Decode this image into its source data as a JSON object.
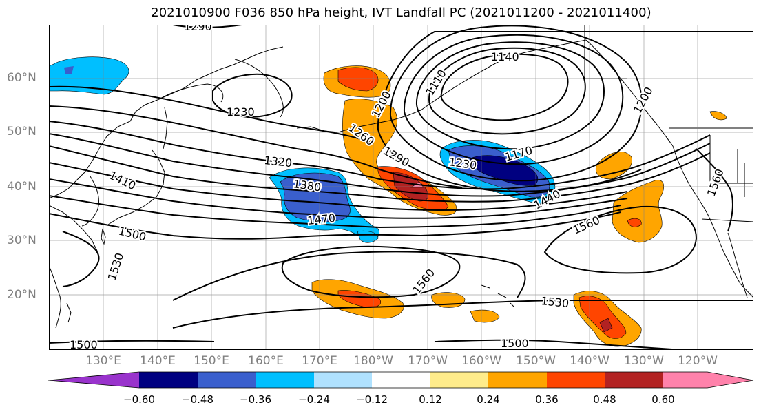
{
  "title": "2021010900 F036 850 hPa height, IVT Landfall PC (2021011200 - 2021011400)",
  "lat_labels": [
    "60°N",
    "50°N",
    "40°N",
    "30°N",
    "20°N"
  ],
  "lon_labels": [
    "130°E",
    "140°E",
    "150°E",
    "160°E",
    "170°E",
    "180°W",
    "170°W",
    "160°W",
    "150°W",
    "140°W",
    "130°W",
    "120°W"
  ],
  "contour_labels": [
    "1290",
    "1140",
    "1110",
    "1200",
    "1230",
    "1260",
    "1290",
    "1320",
    "1410",
    "1380",
    "1230",
    "1170",
    "1470",
    "1440",
    "1500",
    "1560",
    "1530",
    "1560",
    "1530",
    "1500",
    "1500",
    "1560",
    "1200"
  ],
  "colorbar": {
    "ticks": [
      "−0.60",
      "−0.48",
      "−0.36",
      "−0.24",
      "−0.12",
      "0.12",
      "0.24",
      "0.36",
      "0.48",
      "0.60"
    ],
    "colors": [
      "#9933cc",
      "#000080",
      "#3a5fcd",
      "#00bfff",
      "#b0e2ff",
      "#ffffff",
      "#ffec8b",
      "#ffa500",
      "#ff4500",
      "#b22222",
      "#ff82ab"
    ]
  },
  "colors": {
    "contour": "#000000",
    "coast": "#000000",
    "grid": "#808080"
  }
}
